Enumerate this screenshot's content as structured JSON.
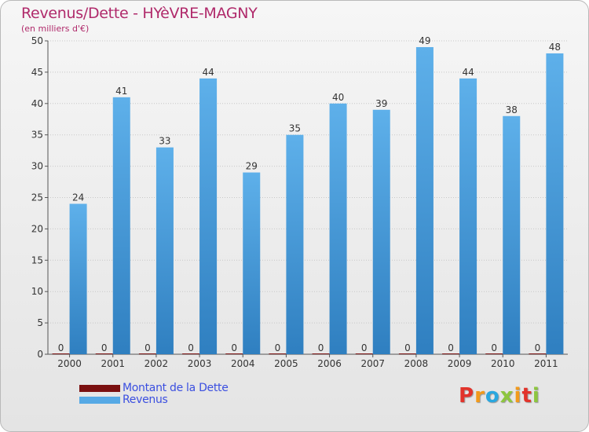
{
  "title": "Revenus/Dette - HYèVRE-MAGNY",
  "subtitle": "(en milliers d'€)",
  "colors": {
    "title": "#b02a6b",
    "debt": "#7a1010",
    "revenue": "#56a9e5",
    "revenue_dark": "#2f7fc0",
    "legend_text": "#3b4fe0"
  },
  "chart_data": {
    "type": "bar",
    "title": "Revenus/Dette - HYèVRE-MAGNY",
    "ylabel": "(en milliers d'€)",
    "xlabel": "",
    "categories": [
      "2000",
      "2001",
      "2002",
      "2003",
      "2004",
      "2005",
      "2006",
      "2007",
      "2008",
      "2009",
      "2010",
      "2011"
    ],
    "series": [
      {
        "name": "Montant de la Dette",
        "values": [
          0,
          0,
          0,
          0,
          0,
          0,
          0,
          0,
          0,
          0,
          0,
          0
        ]
      },
      {
        "name": "Revenus",
        "values": [
          24,
          41,
          33,
          44,
          29,
          35,
          40,
          39,
          49,
          44,
          38,
          48
        ]
      }
    ],
    "ylim": [
      0,
      50
    ],
    "yticks": [
      0,
      5,
      10,
      15,
      20,
      25,
      30,
      35,
      40,
      45,
      50
    ],
    "grid": true,
    "legend_position": "bottom-left"
  },
  "legend": [
    {
      "label": "Montant de la Dette",
      "color": "#7a1010"
    },
    {
      "label": "Revenus",
      "color": "#56a9e5"
    }
  ],
  "logo": {
    "letters": [
      "P",
      "r",
      "o",
      "x",
      "i",
      "t",
      "i"
    ],
    "colors": [
      "#e2332b",
      "#f29a1b",
      "#2aa7df",
      "#8dc63f",
      "#f29a1b",
      "#e2332b",
      "#8dc63f"
    ]
  }
}
